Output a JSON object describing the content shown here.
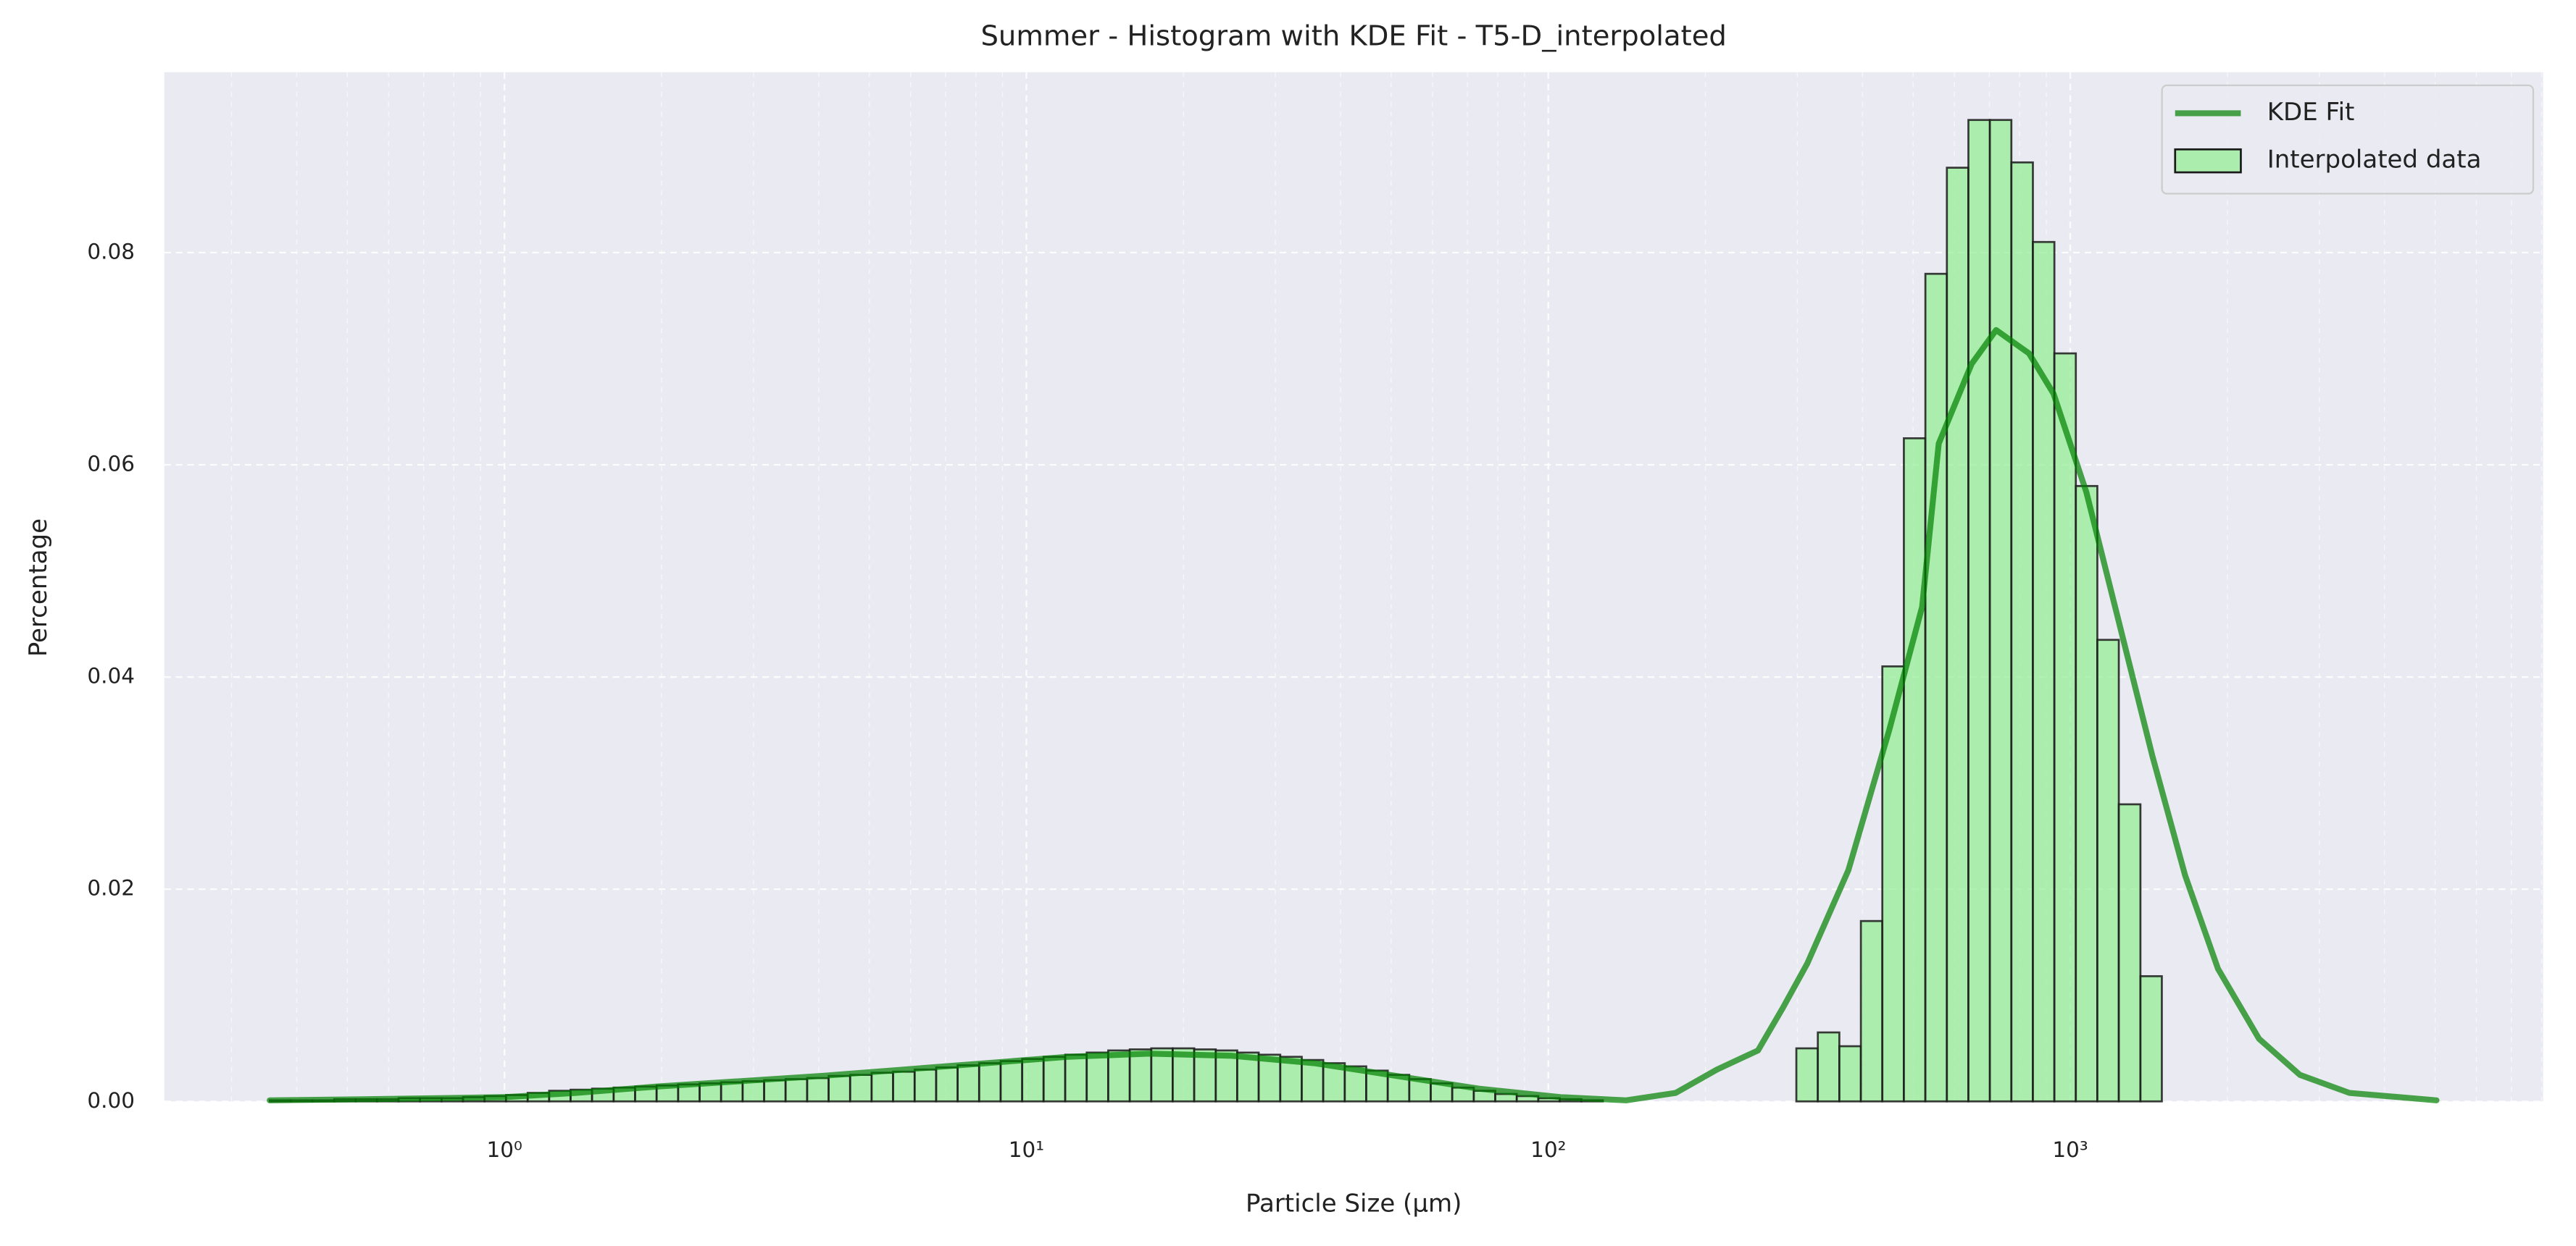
{
  "chart_data": {
    "type": "histogram",
    "title": "Summer - Histogram with KDE Fit - T5-D_interpolated",
    "xlabel": "Particle Size (μm)",
    "ylabel": "Percentage",
    "xscale": "log",
    "xlim": [
      0.223,
      8054
    ],
    "ylim": [
      0,
      0.097
    ],
    "xticks": [
      {
        "value": 1,
        "label": "10⁰"
      },
      {
        "value": 10,
        "label": "10¹"
      },
      {
        "value": 100,
        "label": "10²"
      },
      {
        "value": 1000,
        "label": "10³"
      }
    ],
    "xminorticks": [
      0.3,
      0.4,
      0.5,
      0.6,
      0.7,
      0.8,
      0.9,
      2,
      3,
      4,
      5,
      6,
      7,
      8,
      9,
      20,
      30,
      40,
      50,
      60,
      70,
      80,
      90,
      200,
      300,
      400,
      500,
      600,
      700,
      800,
      900,
      2000,
      3000,
      4000,
      5000,
      6000,
      7000,
      8000
    ],
    "yticks": [
      {
        "value": 0,
        "label": "0.00"
      },
      {
        "value": 0.02,
        "label": "0.02"
      },
      {
        "value": 0.04,
        "label": "0.04"
      },
      {
        "value": 0.06,
        "label": "0.06"
      },
      {
        "value": 0.08,
        "label": "0.08"
      }
    ],
    "grid": true,
    "legend": "upper right",
    "name": "Interpolated data",
    "color": "#90ee90",
    "edgecolor": "#1a1a1a",
    "bins": [
      0.355,
      0.39,
      0.429,
      0.472,
      0.519,
      0.57,
      0.627,
      0.689,
      0.758,
      0.833,
      0.916,
      1.007,
      1.108,
      1.218,
      1.339,
      1.472,
      1.619,
      1.78,
      1.957,
      2.152,
      2.366,
      2.601,
      2.86,
      3.145,
      3.457,
      3.802,
      4.18,
      4.596,
      5.052,
      5.555,
      6.109,
      6.717,
      7.385,
      8.12,
      8.928,
      9.817,
      10.79,
      11.87,
      13.05,
      14.35,
      15.78,
      17.35,
      19.07,
      20.97,
      23.06,
      25.35,
      27.87,
      30.65,
      33.7,
      37.05,
      40.74,
      44.79,
      49.25,
      54.15,
      59.54,
      65.46,
      71.98,
      79.14,
      87.01,
      95.68,
      105.2,
      115.7,
      127.2,
      139.8,
      153.8,
      169.0,
      185.9,
      204.4,
      224.7,
      247.1,
      271.6,
      298.7,
      328.4,
      361.1,
      397.1,
      436.5,
      480.0,
      527.8,
      580.3,
      638.1,
      701.5,
      771.3,
      848.1,
      932.5,
      1025,
      1127,
      1239,
      1363,
      1498
    ],
    "counts": [
      0.0001,
      0.0001,
      0.0001,
      0.0002,
      0.0002,
      0.0002,
      0.0003,
      0.0003,
      0.0003,
      0.0004,
      0.0005,
      0.0006,
      0.0008,
      0.001,
      0.0011,
      0.0012,
      0.0013,
      0.0014,
      0.0015,
      0.0016,
      0.0017,
      0.0018,
      0.0019,
      0.002,
      0.0021,
      0.0022,
      0.0024,
      0.0025,
      0.0027,
      0.0028,
      0.003,
      0.0032,
      0.0034,
      0.0036,
      0.0038,
      0.004,
      0.0042,
      0.0044,
      0.0046,
      0.0048,
      0.0049,
      0.005,
      0.005,
      0.0049,
      0.0048,
      0.0046,
      0.0044,
      0.0042,
      0.0039,
      0.0036,
      0.0033,
      0.0029,
      0.0025,
      0.0021,
      0.0017,
      0.0013,
      0.001,
      0.0007,
      0.0005,
      0.0003,
      0.0002,
      0.0001,
      0,
      0,
      0,
      0,
      0,
      0,
      0,
      0,
      0,
      0.005,
      0.0065,
      0.0052,
      0.017,
      0.041,
      0.0625,
      0.078,
      0.088,
      0.0925,
      0.0925,
      0.0885,
      0.081,
      0.0705,
      0.058,
      0.0435,
      0.028,
      0.0118
    ],
    "kde": {
      "name": "KDE Fit",
      "color": "#008000",
      "x": [
        0.355,
        0.536,
        1,
        1.37,
        1.96,
        2.82,
        4.05,
        5.82,
        8.35,
        12.0,
        17.2,
        24.8,
        35.6,
        51.2,
        73.6,
        105.7,
        141,
        175.4,
        210.4,
        252.2,
        281.3,
        313.5,
        375.8,
        450.0,
        520.2,
        559.8,
        647.1,
        721.1,
        833.7,
        929.0,
        1074,
        1242,
        1436,
        1660,
        1919,
        2300,
        2754,
        3427,
        5032
      ],
      "values": [
        0.0001,
        0.0002,
        0.0004,
        0.0008,
        0.0014,
        0.0019,
        0.0024,
        0.003,
        0.0036,
        0.0042,
        0.0045,
        0.0043,
        0.0036,
        0.0024,
        0.0012,
        0.0004,
        0.0001,
        0.0008,
        0.003,
        0.0048,
        0.0088,
        0.013,
        0.0218,
        0.035,
        0.0466,
        0.062,
        0.0695,
        0.0727,
        0.0705,
        0.0667,
        0.0574,
        0.045,
        0.0326,
        0.0213,
        0.0125,
        0.0059,
        0.0025,
        0.0008,
        0.0001
      ]
    }
  }
}
